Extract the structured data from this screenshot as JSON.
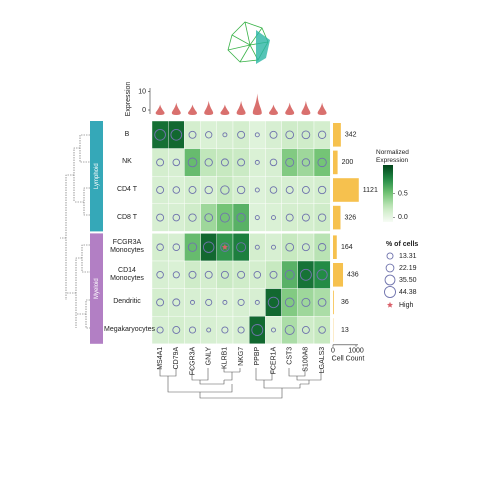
{
  "chart_data": {
    "type": "matrixplot",
    "genes": [
      "MS4A1",
      "CD79A",
      "FCGR3A",
      "GNLY",
      "KLRB1",
      "NKG7",
      "PPBP",
      "FCER1A",
      "CST3",
      "S100A8",
      "LGALS3"
    ],
    "categories": [
      "B",
      "NK",
      "CD4 T",
      "CD8 T",
      "FCGR3A\nMonocytes",
      "CD14\nMonocytes",
      "Dendritic",
      "Megakaryocytes"
    ],
    "groups": [
      {
        "name": "Lymphoid",
        "color": "#35a8b8"
      },
      {
        "name": "Myeloid",
        "color": "#b27fc4"
      }
    ],
    "expression": [
      [
        0.92,
        0.95,
        0.12,
        0.08,
        0.1,
        0.12,
        0.05,
        0.1,
        0.15,
        0.15,
        0.12
      ],
      [
        0.12,
        0.1,
        0.55,
        0.22,
        0.2,
        0.18,
        0.08,
        0.1,
        0.45,
        0.35,
        0.5
      ],
      [
        0.1,
        0.08,
        0.12,
        0.1,
        0.2,
        0.12,
        0.06,
        0.1,
        0.1,
        0.1,
        0.12
      ],
      [
        0.1,
        0.1,
        0.15,
        0.35,
        0.5,
        0.6,
        0.06,
        0.08,
        0.12,
        0.12,
        0.15
      ],
      [
        0.12,
        0.1,
        0.55,
        0.95,
        0.75,
        0.85,
        0.12,
        0.1,
        0.2,
        0.15,
        0.25
      ],
      [
        0.1,
        0.08,
        0.15,
        0.12,
        0.18,
        0.15,
        0.12,
        0.2,
        0.6,
        0.9,
        0.8
      ],
      [
        0.12,
        0.1,
        0.1,
        0.1,
        0.08,
        0.1,
        0.1,
        0.95,
        0.45,
        0.35,
        0.3
      ],
      [
        0.1,
        0.12,
        0.1,
        0.1,
        0.08,
        0.1,
        0.95,
        0.1,
        0.3,
        0.15,
        0.2
      ]
    ],
    "percent": [
      [
        42,
        42,
        18,
        15,
        6,
        18,
        6,
        18,
        22,
        22,
        20
      ],
      [
        18,
        16,
        28,
        20,
        18,
        18,
        6,
        16,
        24,
        20,
        26
      ],
      [
        18,
        16,
        18,
        20,
        26,
        20,
        6,
        16,
        18,
        18,
        20
      ],
      [
        18,
        16,
        20,
        22,
        30,
        26,
        6,
        6,
        18,
        18,
        20
      ],
      [
        16,
        16,
        26,
        40,
        26,
        30,
        6,
        6,
        22,
        18,
        20
      ],
      [
        16,
        14,
        18,
        18,
        18,
        18,
        16,
        18,
        30,
        44,
        38
      ],
      [
        18,
        18,
        6,
        14,
        6,
        14,
        6,
        40,
        28,
        24,
        22
      ],
      [
        14,
        18,
        14,
        6,
        14,
        14,
        44,
        6,
        30,
        18,
        16
      ]
    ],
    "high": [
      [
        4,
        4
      ]
    ],
    "colorbar_title": "Normalized\nExpression",
    "clim": [
      -0.1,
      1.1
    ],
    "cticks": [
      {
        "value": 0,
        "label": "0.0"
      },
      0.5
    ],
    "size_title": "% of cells",
    "size_legend": [
      13.31,
      22.19,
      {
        "value": 35.5,
        "label": "35.50"
      },
      44.38
    ],
    "high_label": "High",
    "violin": {
      "ylabel": "Expression",
      "ylim": [
        0,
        12
      ],
      "yticks": [
        0,
        10
      ],
      "color": "#d9706e",
      "values": [
        3,
        4,
        3,
        5,
        3,
        5,
        9,
        3,
        4,
        5,
        4
      ]
    },
    "counts": {
      "xlabel": "Cell Count",
      "values": [
        342,
        200,
        1121,
        326,
        164,
        436,
        36,
        13
      ],
      "xlim": [
        0,
        1200
      ],
      "xticks": [
        0,
        1000
      ],
      "color": "#f6c14e"
    }
  }
}
